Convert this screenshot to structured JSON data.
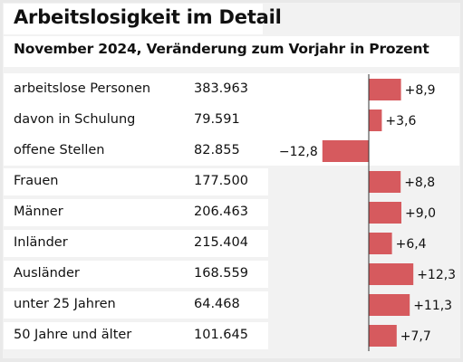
{
  "title": "Arbeitslosigkeit im Detail",
  "subtitle": "November 2024, Veränderung zum Vorjahr in Prozent",
  "colors": {
    "bar": "#d65a5e",
    "highlight_bg": "#ffffff",
    "panel_bg": "#f2f2f2",
    "axis": "#333333"
  },
  "chart_data": {
    "type": "bar",
    "orientation": "horizontal",
    "title": "Arbeitslosigkeit im Detail",
    "subtitle": "November 2024, Veränderung zum Vorjahr in Prozent",
    "categories": [
      "arbeitslose Personen",
      "davon in Schulung",
      "offene Stellen",
      "Frauen",
      "Männer",
      "Inländer",
      "Ausländer",
      "unter 25 Jahren",
      "50 Jahre und älter"
    ],
    "counts": [
      "383.963",
      "79.591",
      "82.855",
      "177.500",
      "206.463",
      "215.404",
      "168.559",
      "64.468",
      "101.645"
    ],
    "values": [
      8.9,
      3.6,
      -12.8,
      8.8,
      9.0,
      6.4,
      12.3,
      11.3,
      7.7
    ],
    "value_labels": [
      "+8,9",
      "+3,6",
      "−12,8",
      "+8,8",
      "+9,0",
      "+6,4",
      "+12,3",
      "+11,3",
      "+7,7"
    ],
    "highlighted_rows": [
      0,
      1,
      2
    ]
  }
}
